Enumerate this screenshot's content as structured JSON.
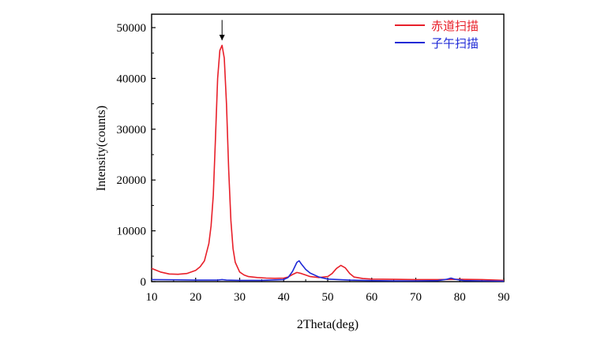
{
  "chart_data": {
    "type": "line",
    "xlabel": "2Theta(deg)",
    "ylabel": "Intensity(counts)",
    "xlim": [
      10,
      90
    ],
    "ylim": [
      0,
      55000
    ],
    "xticks": [
      10,
      20,
      30,
      40,
      50,
      60,
      70,
      80,
      90
    ],
    "yticks": [
      0,
      10000,
      20000,
      30000,
      40000,
      50000
    ],
    "grid": false,
    "legend_position": "top-right",
    "annotation": {
      "type": "arrow",
      "x": 26,
      "y_start": 51500,
      "y_end": 47500
    },
    "series": [
      {
        "name": "赤道扫描",
        "color": "#e8202a",
        "x": [
          10,
          12,
          14,
          16,
          18,
          20,
          21,
          22,
          23,
          23.5,
          24,
          24.5,
          25,
          25.5,
          26,
          26.5,
          27,
          27.5,
          28,
          28.5,
          29,
          30,
          31,
          32,
          34,
          36,
          38,
          40,
          41,
          42,
          43,
          44,
          45,
          46,
          48,
          50,
          51,
          52,
          53,
          54,
          55,
          56,
          58,
          60,
          65,
          70,
          75,
          80,
          85,
          90
        ],
        "y": [
          2600,
          1900,
          1500,
          1450,
          1600,
          2200,
          2900,
          4100,
          7500,
          11000,
          17000,
          28000,
          40000,
          45500,
          46500,
          44000,
          35000,
          22000,
          12000,
          6500,
          3800,
          1900,
          1300,
          1000,
          800,
          700,
          650,
          700,
          900,
          1400,
          1800,
          1600,
          1300,
          1000,
          800,
          1000,
          1600,
          2600,
          3200,
          2700,
          1600,
          900,
          600,
          500,
          450,
          400,
          400,
          450,
          400,
          250
        ]
      },
      {
        "name": "子午扫描",
        "color": "#1f2ad6",
        "x": [
          10,
          15,
          20,
          25,
          26,
          27,
          30,
          35,
          40,
          41,
          42,
          43,
          43.5,
          44,
          45,
          46,
          48,
          50,
          55,
          60,
          65,
          70,
          75,
          77,
          78,
          79,
          81,
          85,
          90
        ],
        "y": [
          400,
          350,
          300,
          300,
          400,
          300,
          250,
          250,
          400,
          800,
          2000,
          3800,
          4100,
          3500,
          2400,
          1700,
          900,
          500,
          300,
          200,
          150,
          150,
          200,
          450,
          700,
          450,
          200,
          150,
          100
        ]
      }
    ]
  }
}
